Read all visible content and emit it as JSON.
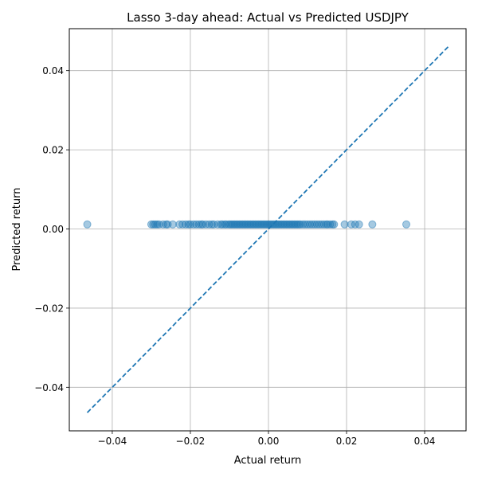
{
  "chart_data": {
    "type": "scatter",
    "title": "Lasso 3-day ahead: Actual vs Predicted USDJPY",
    "xlabel": "Actual return",
    "ylabel": "Predicted return",
    "xlim": [
      -0.051,
      0.0506
    ],
    "ylim": [
      -0.051,
      0.0506
    ],
    "xticks": [
      -0.04,
      -0.02,
      0.0,
      0.02,
      0.04
    ],
    "yticks": [
      -0.04,
      -0.02,
      0.0,
      0.02,
      0.04
    ],
    "xtick_labels": [
      "−0.04",
      "−0.02",
      "0.00",
      "0.02",
      "0.04"
    ],
    "ytick_labels": [
      "−0.04",
      "−0.02",
      "0.00",
      "0.02",
      "0.04"
    ],
    "grid": true,
    "point_color": "#1f77b4",
    "line_color": "#1f77b4",
    "reference_line": {
      "x": [
        -0.0464,
        0.0462
      ],
      "y": [
        -0.0464,
        0.0462
      ],
      "style": "dashed"
    },
    "predicted_value": 0.00115,
    "x": [
      -0.0464,
      -0.03,
      -0.0295,
      -0.029,
      -0.0285,
      -0.028,
      -0.027,
      -0.0262,
      -0.0258,
      -0.0245,
      -0.0228,
      -0.022,
      -0.0212,
      -0.0205,
      -0.02,
      -0.0192,
      -0.0185,
      -0.0178,
      -0.0172,
      -0.0168,
      -0.016,
      -0.0152,
      -0.0145,
      -0.014,
      -0.013,
      -0.0122,
      -0.0118,
      -0.0112,
      -0.0108,
      -0.0102,
      -0.0098,
      -0.0094,
      -0.009,
      -0.0086,
      -0.0082,
      -0.0078,
      -0.0074,
      -0.007,
      -0.0066,
      -0.0062,
      -0.0058,
      -0.0054,
      -0.005,
      -0.0046,
      -0.0042,
      -0.0038,
      -0.0034,
      -0.003,
      -0.0026,
      -0.0022,
      -0.0018,
      -0.0014,
      -0.001,
      -0.0006,
      -0.0002,
      0.0002,
      0.0006,
      0.001,
      0.0014,
      0.0018,
      0.0022,
      0.0026,
      0.003,
      0.0034,
      0.0038,
      0.0042,
      0.0046,
      0.005,
      0.0054,
      0.0058,
      0.0062,
      0.0066,
      0.007,
      0.0074,
      0.0078,
      0.0082,
      0.0088,
      0.0094,
      0.01,
      0.0106,
      0.0112,
      0.0118,
      0.0124,
      0.013,
      0.0136,
      0.0142,
      0.0148,
      0.0152,
      0.0158,
      0.0164,
      0.0168,
      0.0195,
      0.0212,
      0.0222,
      0.0232,
      0.0266,
      0.0353
    ],
    "y": [
      0.00115,
      0.00115,
      0.00115,
      0.00115,
      0.00115,
      0.00115,
      0.00115,
      0.00115,
      0.00115,
      0.00115,
      0.00115,
      0.00115,
      0.00115,
      0.00115,
      0.00115,
      0.00115,
      0.00115,
      0.00115,
      0.00115,
      0.00115,
      0.00115,
      0.00115,
      0.00115,
      0.00115,
      0.00115,
      0.00115,
      0.00115,
      0.00115,
      0.00115,
      0.00115,
      0.00115,
      0.00115,
      0.00115,
      0.00115,
      0.00115,
      0.00115,
      0.00115,
      0.00115,
      0.00115,
      0.00115,
      0.00115,
      0.00115,
      0.00115,
      0.00115,
      0.00115,
      0.00115,
      0.00115,
      0.00115,
      0.00115,
      0.00115,
      0.00115,
      0.00115,
      0.00115,
      0.00115,
      0.00115,
      0.00115,
      0.00115,
      0.00115,
      0.00115,
      0.00115,
      0.00115,
      0.00115,
      0.00115,
      0.00115,
      0.00115,
      0.00115,
      0.00115,
      0.00115,
      0.00115,
      0.00115,
      0.00115,
      0.00115,
      0.00115,
      0.00115,
      0.00115,
      0.00115,
      0.00115,
      0.00115,
      0.00115,
      0.00115,
      0.00115,
      0.00115,
      0.00115,
      0.00115,
      0.00115,
      0.00115,
      0.00115,
      0.00115,
      0.00115,
      0.00115,
      0.00115,
      0.00115,
      0.00115,
      0.00115,
      0.00115,
      0.00115,
      0.00115
    ]
  }
}
